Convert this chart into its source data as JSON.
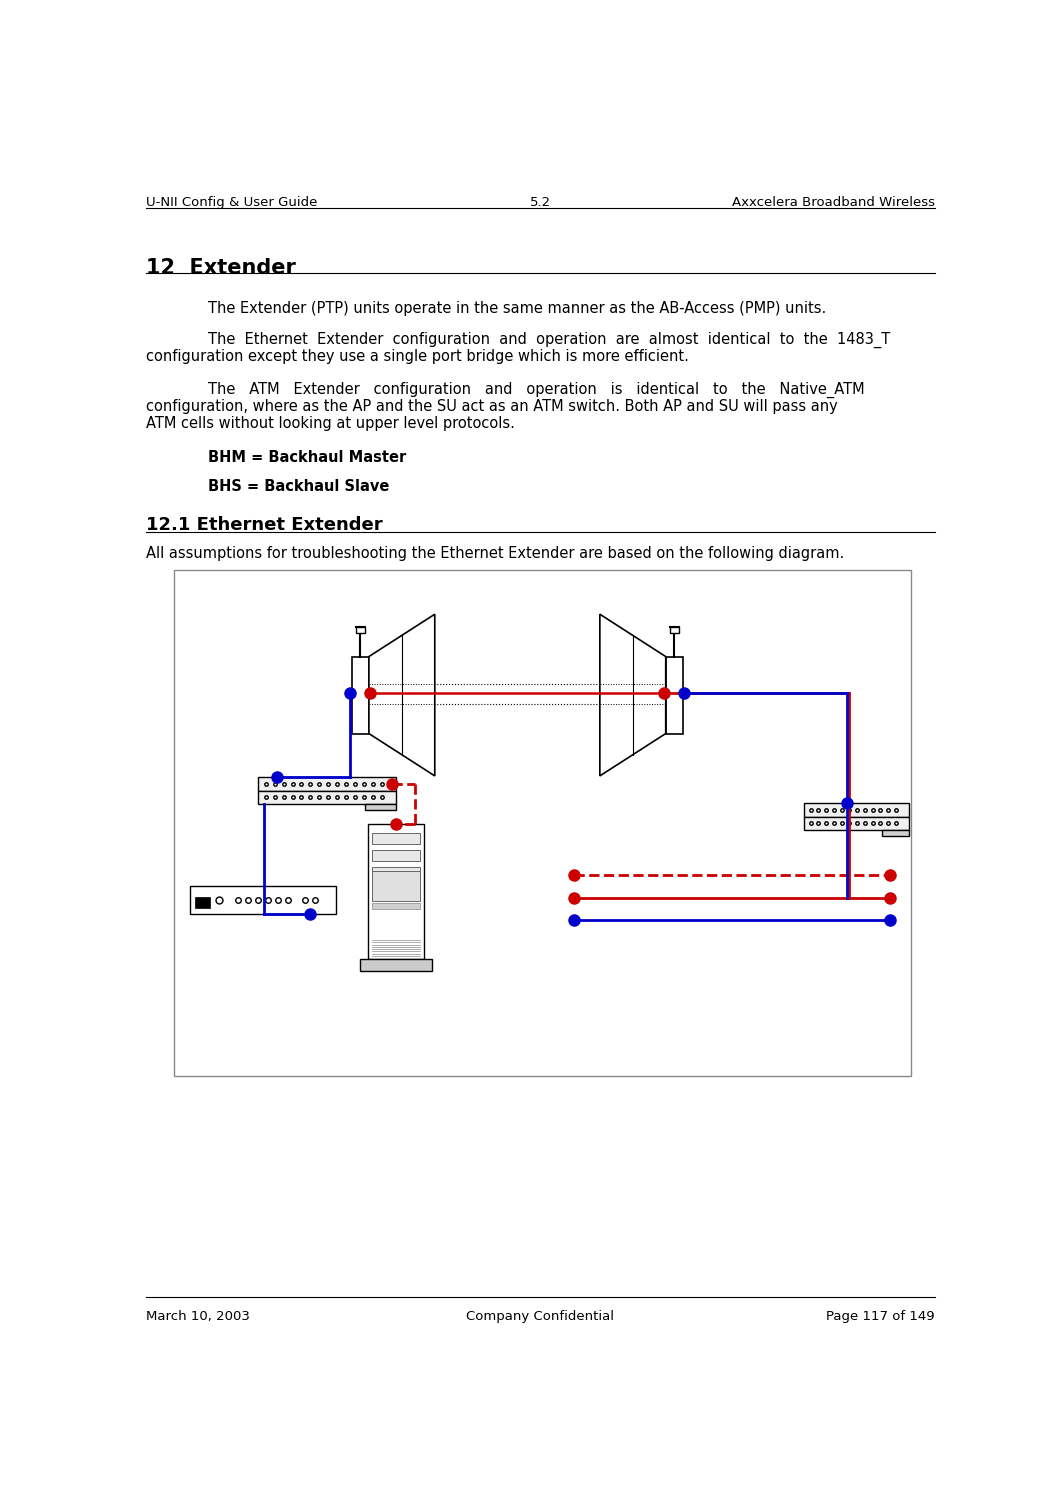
{
  "header_left": "U-NII Config & User Guide",
  "header_center": "5.2",
  "header_right": "Axxcelera Broadband Wireless",
  "footer_left": "March 10, 2003",
  "footer_center": "Company Confidential",
  "footer_right": "Page 117 of 149",
  "section_title": "12  Extender",
  "para1": "The Extender (PTP) units operate in the same manner as the AB-Access (PMP) units.",
  "para2_line1": "The  Ethernet  Extender  configuration  and  operation  are  almost  identical  to  the  1483_T",
  "para2_line2": "configuration except they use a single port bridge which is more efficient.",
  "para3_line1": "The   ATM   Extender   configuration   and   operation   is   identical   to   the   Native_ATM",
  "para3_line2": "configuration, where as the AP and the SU act as an ATM switch. Both AP and SU will pass any",
  "para3_line3": "ATM cells without looking at upper level protocols.",
  "bold1": "BHM = Backhaul Master",
  "bold2": "BHS = Backhaul Slave",
  "subsection": "12.1 Ethernet Extender",
  "diagram_intro": "All assumptions for troubleshooting the Ethernet Extender are based on the following diagram.",
  "bg_color": "#ffffff",
  "text_color": "#000000",
  "blue": "#0000cc",
  "red": "#cc0000"
}
